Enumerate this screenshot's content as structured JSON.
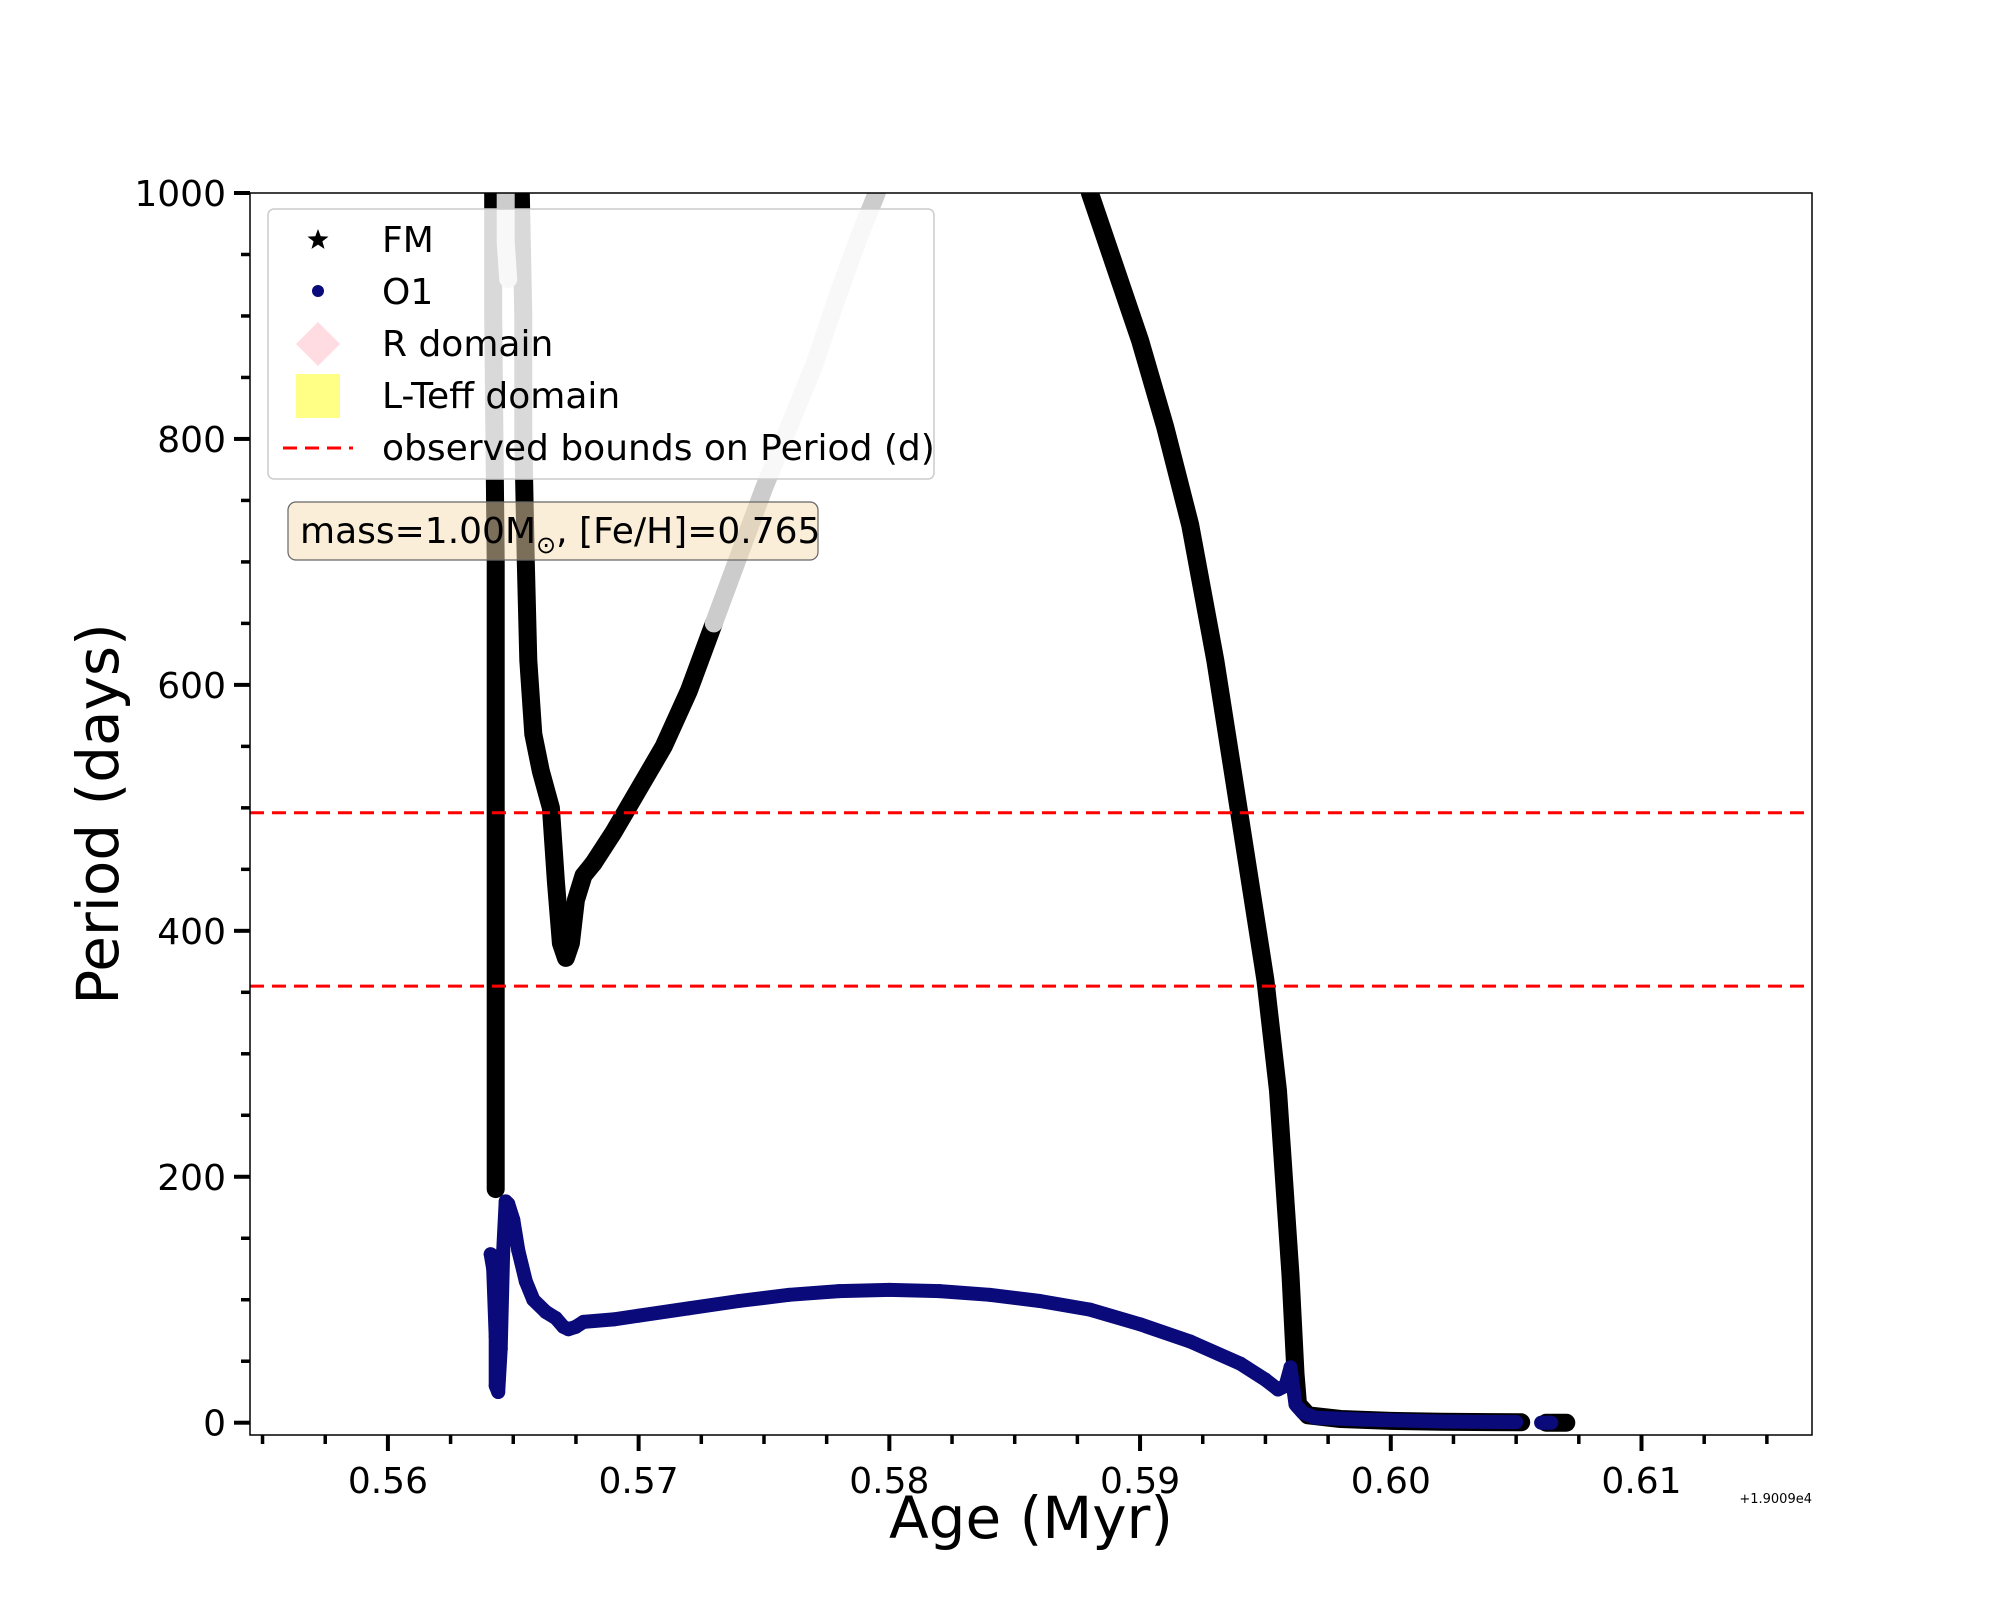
{
  "chart_data": {
    "type": "scatter",
    "xlabel": "Age (Myr)",
    "ylabel": "Period (days)",
    "x_offset_text": "+1.9009e4",
    "xlim": [
      0.5545,
      0.6168
    ],
    "ylim": [
      -10,
      1000
    ],
    "x_ticks": [
      0.56,
      0.57,
      0.58,
      0.59,
      0.6,
      0.61
    ],
    "x_tick_labels": [
      "0.56",
      "0.57",
      "0.58",
      "0.59",
      "0.60",
      "0.61"
    ],
    "y_ticks": [
      0,
      200,
      400,
      600,
      800,
      1000
    ],
    "y_tick_labels": [
      "0",
      "200",
      "400",
      "600",
      "800",
      "1000"
    ],
    "grid": false,
    "legend_placement": "upper-left",
    "legend": [
      {
        "label": "FM",
        "marker": "star",
        "color": "#000000"
      },
      {
        "label": "O1",
        "marker": "circle",
        "color": "#0a0a7a"
      },
      {
        "label": "R domain",
        "marker": "diamond",
        "color": "#ffc0cb"
      },
      {
        "label": "L-Teff domain",
        "marker": "square",
        "color": "#ffff66"
      },
      {
        "label": "observed bounds on Period (d)",
        "marker": "dashed-line",
        "color": "#ff0000"
      }
    ],
    "annotation": {
      "prefix": "mass=1.00M",
      "subscript": "⊙",
      "suffix": ", [Fe/H]=0.765"
    },
    "hlines": [
      496,
      355
    ],
    "series": [
      {
        "name": "FM",
        "color": "#000000",
        "segments": [
          {
            "color": "#000000",
            "points": [
              [
                0.5642,
                1000
              ],
              [
                0.5642,
                900
              ],
              [
                0.5643,
                700
              ],
              [
                0.5643,
                500
              ],
              [
                0.5643,
                380
              ],
              [
                0.5643,
                250
              ],
              [
                0.5643,
                190
              ]
            ]
          },
          {
            "color": "#000000",
            "points": [
              [
                0.5653,
                1000
              ],
              [
                0.5654,
                900
              ],
              [
                0.5654,
                800
              ],
              [
                0.5655,
                700
              ],
              [
                0.5656,
                620
              ],
              [
                0.5658,
                560
              ],
              [
                0.5661,
                530
              ],
              [
                0.5665,
                500
              ],
              [
                0.5667,
                440
              ],
              [
                0.5669,
                390
              ],
              [
                0.5671,
                378
              ],
              [
                0.5673,
                390
              ],
              [
                0.5675,
                425
              ],
              [
                0.5678,
                445
              ],
              [
                0.5682,
                455
              ]
            ]
          },
          {
            "color": "#000000",
            "points": [
              [
                0.5682,
                455
              ],
              [
                0.569,
                480
              ],
              [
                0.57,
                515
              ],
              [
                0.571,
                550
              ],
              [
                0.572,
                595
              ],
              [
                0.573,
                650
              ]
            ]
          },
          {
            "color": "#cccccc",
            "points": [
              [
                0.573,
                650
              ],
              [
                0.574,
                705
              ],
              [
                0.575,
                760
              ],
              [
                0.576,
                810
              ],
              [
                0.577,
                860
              ],
              [
                0.578,
                920
              ],
              [
                0.5788,
                965
              ],
              [
                0.5795,
                1000
              ]
            ]
          },
          {
            "color": "#cccccc",
            "points": [
              [
                0.5647,
                1000
              ],
              [
                0.5647,
                960
              ],
              [
                0.5648,
                930
              ]
            ]
          },
          {
            "color": "#000000",
            "points": [
              [
                0.588,
                1000
              ],
              [
                0.589,
                940
              ],
              [
                0.59,
                880
              ],
              [
                0.591,
                810
              ],
              [
                0.592,
                730
              ],
              [
                0.593,
                620
              ],
              [
                0.594,
                490
              ],
              [
                0.595,
                360
              ],
              [
                0.5955,
                270
              ],
              [
                0.596,
                120
              ],
              [
                0.5962,
                40
              ],
              [
                0.5963,
                15
              ],
              [
                0.5967,
                6
              ],
              [
                0.598,
                3
              ],
              [
                0.6,
                1.5
              ],
              [
                0.602,
                0.8
              ],
              [
                0.604,
                0.5
              ],
              [
                0.6052,
                0.3
              ]
            ]
          },
          {
            "color": "#000000",
            "points": [
              [
                0.6062,
                0
              ],
              [
                0.6065,
                0
              ],
              [
                0.607,
                0
              ]
            ]
          }
        ]
      },
      {
        "name": "O1",
        "color": "#0a0a7a",
        "segments": [
          {
            "color": "#0a0a7a",
            "points": [
              [
                0.5641,
                137
              ],
              [
                0.5642,
                125
              ],
              [
                0.5643,
                70
              ],
              [
                0.5643,
                30
              ],
              [
                0.5644,
                25
              ],
              [
                0.5645,
                60
              ],
              [
                0.5646,
                140
              ],
              [
                0.5647,
                180
              ],
              [
                0.5648,
                178
              ],
              [
                0.565,
                165
              ],
              [
                0.5652,
                140
              ],
              [
                0.5655,
                115
              ],
              [
                0.5658,
                100
              ],
              [
                0.5663,
                90
              ],
              [
                0.5667,
                85
              ],
              [
                0.567,
                78
              ],
              [
                0.5672,
                76
              ],
              [
                0.5675,
                78
              ],
              [
                0.5678,
                82
              ],
              [
                0.569,
                84
              ],
              [
                0.57,
                87
              ],
              [
                0.572,
                93
              ],
              [
                0.574,
                99
              ],
              [
                0.576,
                104
              ],
              [
                0.578,
                107
              ],
              [
                0.58,
                108
              ],
              [
                0.582,
                107
              ],
              [
                0.584,
                104
              ],
              [
                0.586,
                99
              ],
              [
                0.588,
                92
              ],
              [
                0.59,
                80
              ],
              [
                0.592,
                66
              ],
              [
                0.594,
                48
              ],
              [
                0.595,
                35
              ],
              [
                0.5955,
                27
              ],
              [
                0.5958,
                30
              ],
              [
                0.596,
                45
              ],
              [
                0.5961,
                30
              ],
              [
                0.5962,
                15
              ],
              [
                0.5965,
                8
              ],
              [
                0.597,
                4
              ],
              [
                0.599,
                2.5
              ],
              [
                0.602,
                1
              ],
              [
                0.605,
                0.5
              ]
            ]
          },
          {
            "color": "#0a0a7a",
            "points": [
              [
                0.606,
                0
              ],
              [
                0.6064,
                0
              ]
            ]
          }
        ]
      }
    ]
  }
}
